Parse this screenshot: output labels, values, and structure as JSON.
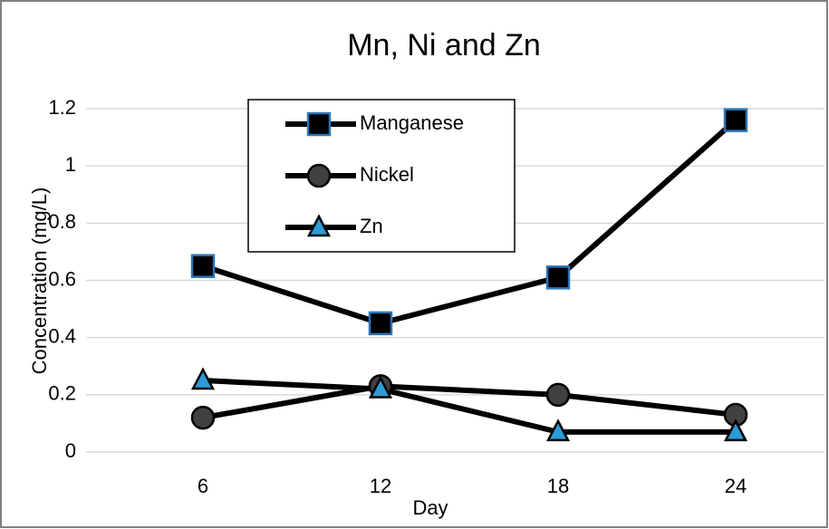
{
  "chart_data": {
    "type": "line",
    "title": "Mn, Ni and Zn",
    "x_label": "Day",
    "y_label": "Concentration (mg/L)",
    "categories": [
      "6",
      "12",
      "18",
      "24"
    ],
    "line_color": "#000000",
    "series": [
      {
        "name": "Manganese",
        "marker": "square",
        "color": "#000000",
        "edge": "#2e75b6",
        "values": [
          0.65,
          0.45,
          0.61,
          1.16
        ]
      },
      {
        "name": "Nickel",
        "marker": "circle",
        "color": "#404040",
        "edge": "#000000",
        "values": [
          0.12,
          0.23,
          0.2,
          0.13
        ]
      },
      {
        "name": "Zn",
        "marker": "triangle",
        "color": "#2e9bd6",
        "edge": "#000000",
        "values": [
          0.25,
          0.22,
          0.07,
          0.07
        ]
      }
    ],
    "ylim": [
      0,
      1.2
    ],
    "yticks": [
      0,
      0.2,
      0.4,
      0.6,
      0.8,
      1,
      1.2
    ],
    "grid": true
  }
}
